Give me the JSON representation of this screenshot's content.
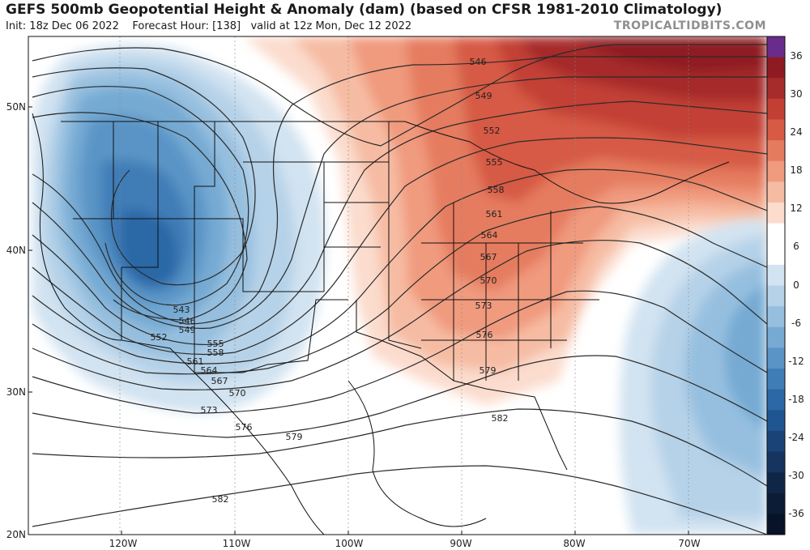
{
  "header": {
    "title": "GEFS 500mb Geopotential Height & Anomaly (dam) (based on CFSR 1981-2010 Climatology)",
    "init": "Init: 18z Dec 06 2022",
    "forecast_hour": "Forecast Hour: [138]",
    "valid": "valid at 12z Mon, Dec 12 2022",
    "credit": "TROPICALTIDBITS.COM"
  },
  "axes": {
    "lat_labels": [
      "50N",
      "40N",
      "30N",
      "20N"
    ],
    "lon_labels": [
      "120W",
      "110W",
      "100W",
      "90W",
      "80W",
      "70W"
    ]
  },
  "colorbar": {
    "labels": [
      "36",
      "30",
      "24",
      "18",
      "12",
      "6",
      "0",
      "-6",
      "-12",
      "-18",
      "-24",
      "-30",
      "-36"
    ],
    "colors": [
      "#6a2c8c",
      "#8e1a22",
      "#a62c2c",
      "#c23f34",
      "#d65a44",
      "#e57b5e",
      "#f09a7e",
      "#f6bca3",
      "#fbdccd",
      "#ffffff",
      "#ffffff",
      "#d2e3f1",
      "#b5d2e8",
      "#96bfdf",
      "#76aad3",
      "#5a94c6",
      "#3f7db7",
      "#2c68a6",
      "#1f5590",
      "#1a4478",
      "#15345f",
      "#102647",
      "#0c1c36",
      "#081329"
    ]
  },
  "contours": {
    "labels": [
      "546",
      "549",
      "552",
      "555",
      "558",
      "561",
      "564",
      "567",
      "570",
      "573",
      "576",
      "579",
      "582",
      "543",
      "546",
      "549",
      "552",
      "555",
      "558",
      "561",
      "564",
      "567",
      "570",
      "573",
      "576",
      "579",
      "582"
    ]
  }
}
